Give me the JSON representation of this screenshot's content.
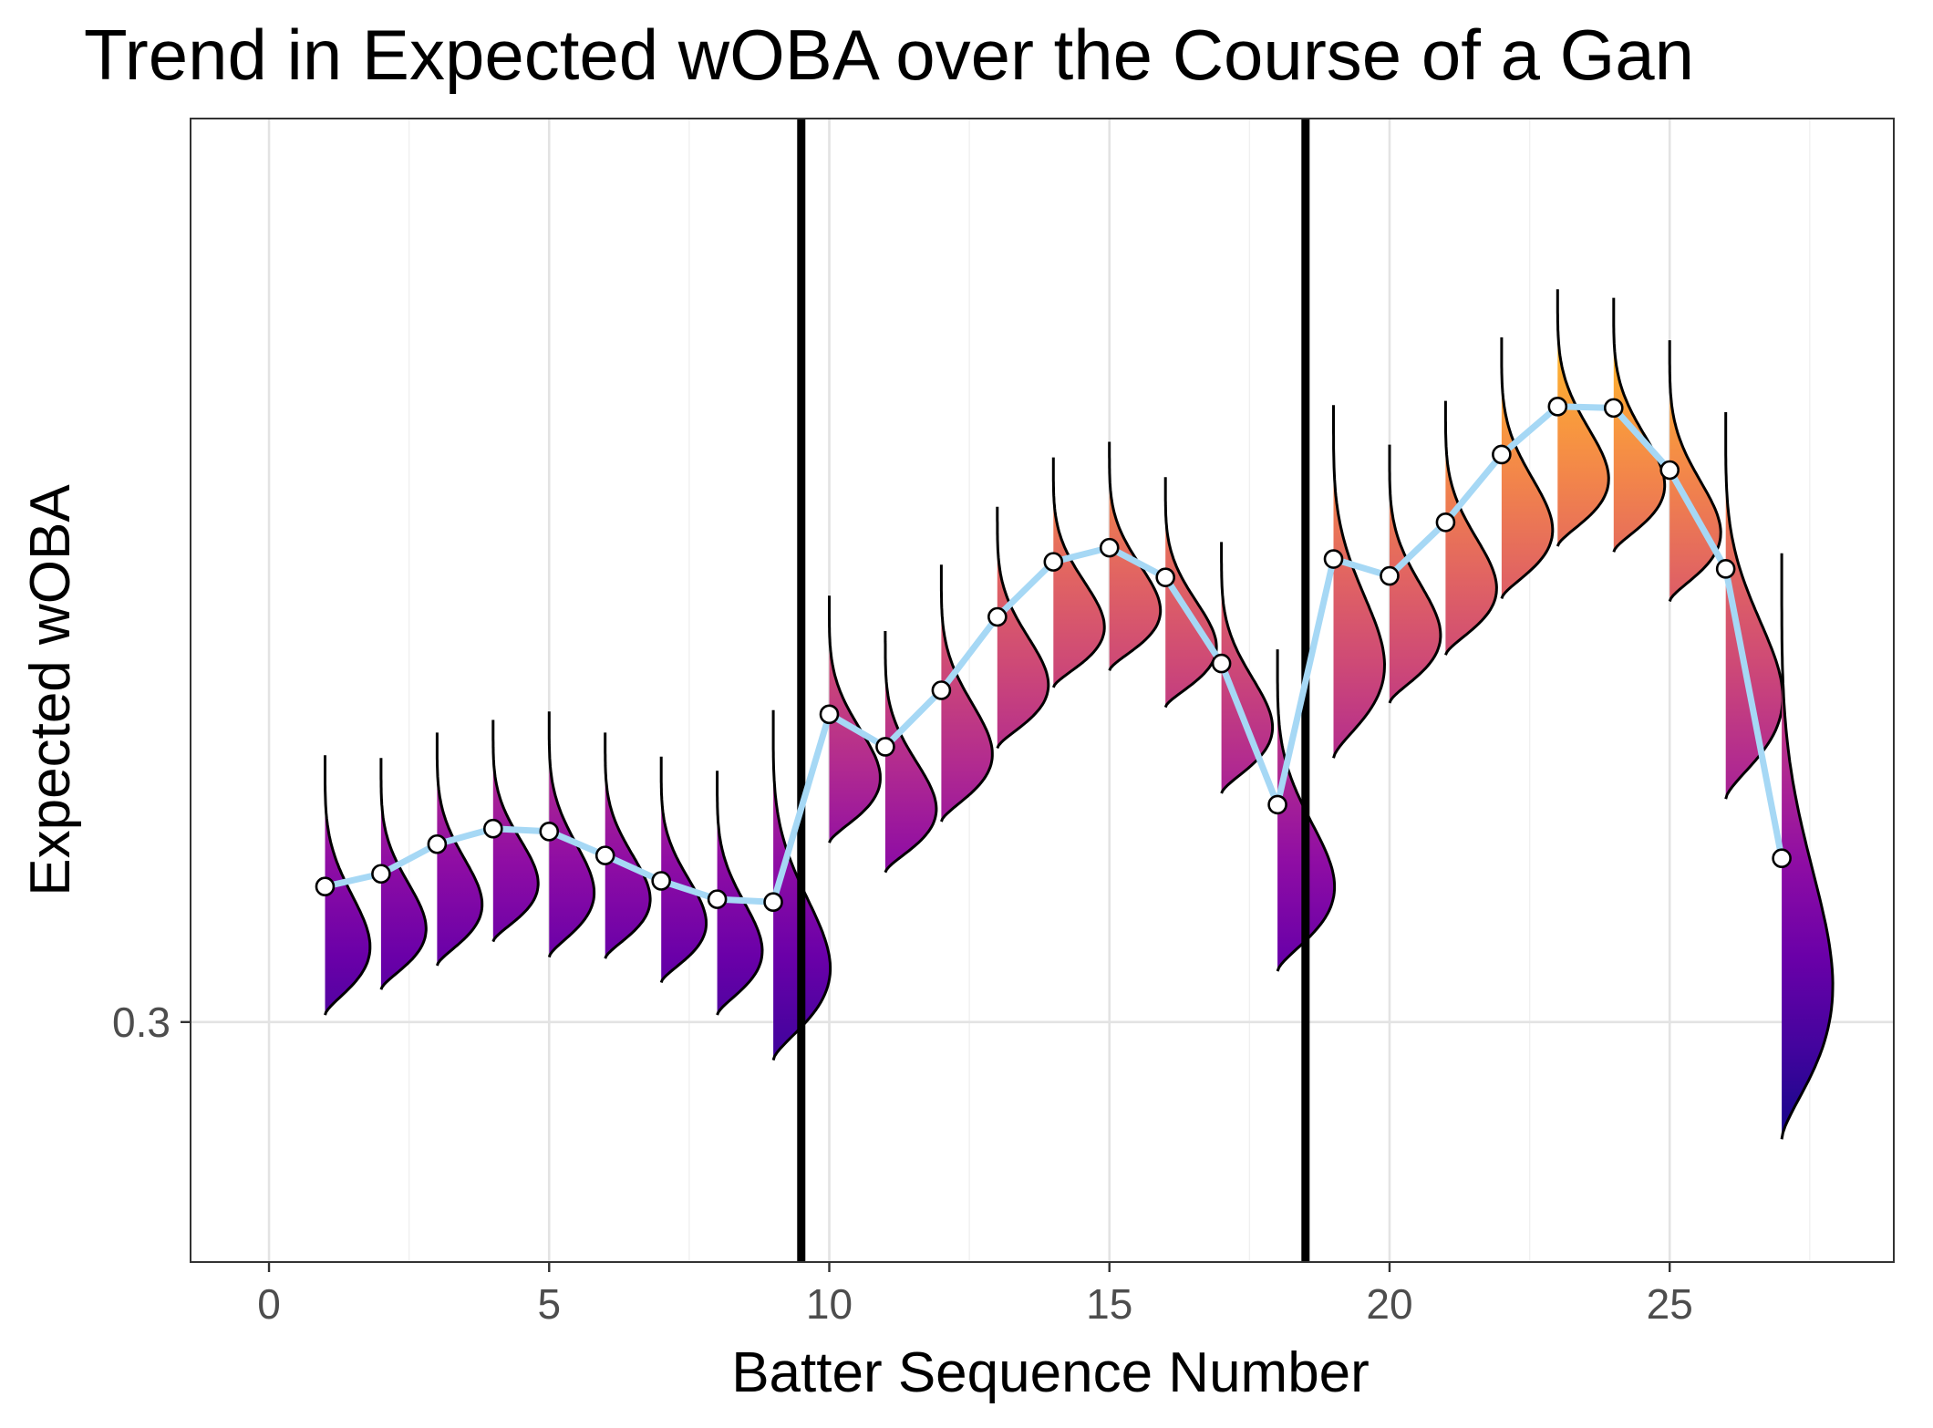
{
  "chart_data": {
    "type": "ridgeline-line",
    "title": "Trend in Expected wOBA over the Course of a Gan",
    "xlabel": "Batter Sequence Number",
    "ylabel": "Expected wOBA",
    "xlim": [
      -1.4,
      29
    ],
    "ylim": [
      0.283,
      0.364
    ],
    "x_ticks": [
      0,
      5,
      10,
      15,
      20,
      25
    ],
    "x_tick_labels": [
      "0",
      "5",
      "10",
      "15",
      "20",
      "25"
    ],
    "y_ticks": [
      0.3
    ],
    "y_tick_labels": [
      "0.3"
    ],
    "grid": true,
    "vertical_lines": [
      9.5,
      18.5
    ],
    "line_color": "#a6d8f5",
    "fill_colormap": "plasma",
    "series": [
      {
        "x": [
          1,
          2,
          3,
          4,
          5,
          6,
          7,
          8,
          9,
          10,
          11,
          12,
          13,
          14,
          15,
          16,
          17,
          18,
          19,
          20,
          21,
          22,
          23,
          24,
          25,
          26,
          27
        ],
        "values": [
          0.3096,
          0.3105,
          0.3126,
          0.3137,
          0.3135,
          0.3118,
          0.31,
          0.3087,
          0.3085,
          0.3218,
          0.3195,
          0.3235,
          0.3287,
          0.3326,
          0.3336,
          0.3315,
          0.3254,
          0.3154,
          0.3328,
          0.3316,
          0.3354,
          0.3402,
          0.3436,
          0.3435,
          0.3391,
          0.3321,
          0.3116
        ],
        "densities": [
          {
            "min": 0.3005,
            "max": 0.3189,
            "width": 0.75
          },
          {
            "min": 0.3023,
            "max": 0.3187,
            "width": 0.75
          },
          {
            "min": 0.304,
            "max": 0.3205,
            "width": 0.75
          },
          {
            "min": 0.3057,
            "max": 0.3214,
            "width": 0.75
          },
          {
            "min": 0.3046,
            "max": 0.322,
            "width": 0.75
          },
          {
            "min": 0.3045,
            "max": 0.3205,
            "width": 0.75
          },
          {
            "min": 0.3028,
            "max": 0.3188,
            "width": 0.75
          },
          {
            "min": 0.3005,
            "max": 0.3178,
            "width": 0.75
          },
          {
            "min": 0.2973,
            "max": 0.3221,
            "width": 0.95
          },
          {
            "min": 0.3127,
            "max": 0.3302,
            "width": 0.85
          },
          {
            "min": 0.3106,
            "max": 0.3277,
            "width": 0.85
          },
          {
            "min": 0.3142,
            "max": 0.3324,
            "width": 0.85
          },
          {
            "min": 0.3194,
            "max": 0.3365,
            "width": 0.85
          },
          {
            "min": 0.3237,
            "max": 0.34,
            "width": 0.85
          },
          {
            "min": 0.3249,
            "max": 0.3411,
            "width": 0.85
          },
          {
            "min": 0.3223,
            "max": 0.3386,
            "width": 0.85
          },
          {
            "min": 0.3162,
            "max": 0.334,
            "width": 0.85
          },
          {
            "min": 0.3036,
            "max": 0.3264,
            "width": 0.95
          },
          {
            "min": 0.3187,
            "max": 0.3437,
            "width": 0.85
          },
          {
            "min": 0.3226,
            "max": 0.3409,
            "width": 0.85
          },
          {
            "min": 0.326,
            "max": 0.344,
            "width": 0.85
          },
          {
            "min": 0.33,
            "max": 0.3485,
            "width": 0.85
          },
          {
            "min": 0.3337,
            "max": 0.3519,
            "width": 0.85
          },
          {
            "min": 0.3333,
            "max": 0.3513,
            "width": 0.85
          },
          {
            "min": 0.3298,
            "max": 0.3483,
            "width": 0.85
          },
          {
            "min": 0.3158,
            "max": 0.3432,
            "width": 0.95
          },
          {
            "min": 0.2917,
            "max": 0.3332,
            "width": 0.85
          }
        ]
      }
    ]
  }
}
